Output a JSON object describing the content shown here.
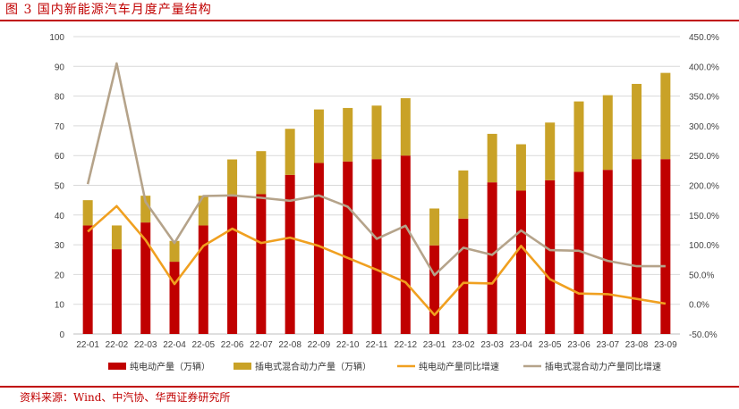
{
  "header": {
    "title": "图 3 国内新能源汽车月度产量结构"
  },
  "footer": {
    "source": "资料来源：Wind、中汽协、华西证券研究所"
  },
  "colors": {
    "bev": "#c00000",
    "phev": "#c9a227",
    "bev_yoy": "#f0a020",
    "phev_yoy": "#b5a38a",
    "grid": "#d9d9d9",
    "brand": "#c00000"
  },
  "chart_data": {
    "type": "bar",
    "stacked": true,
    "categories": [
      "22-01",
      "22-02",
      "22-03",
      "22-04",
      "22-05",
      "22-06",
      "22-07",
      "22-08",
      "22-09",
      "22-10",
      "22-11",
      "22-12",
      "23-01",
      "23-02",
      "23-03",
      "23-04",
      "23-05",
      "23-06",
      "23-07",
      "23-08",
      "23-09"
    ],
    "series": [
      {
        "name": "纯电动产量（万辆）",
        "type": "bar",
        "axis": "left",
        "values": [
          36.5,
          28.5,
          37.5,
          24.3,
          36.5,
          46.5,
          47.0,
          53.5,
          57.5,
          58.0,
          58.8,
          60.0,
          29.8,
          38.8,
          51.0,
          48.2,
          51.7,
          54.5,
          55.2,
          58.8,
          58.8
        ]
      },
      {
        "name": "插电式混合动力产量（万辆）",
        "type": "bar",
        "axis": "left",
        "values": [
          8.5,
          8.0,
          9.0,
          7.0,
          10.0,
          12.2,
          14.5,
          15.5,
          18.0,
          18.0,
          18.0,
          19.3,
          12.4,
          16.2,
          16.3,
          15.6,
          19.4,
          23.7,
          25.1,
          25.3,
          29.0
        ]
      },
      {
        "name": "纯电动产量同比增速",
        "type": "line",
        "axis": "right",
        "values": [
          1.22,
          1.65,
          1.08,
          0.34,
          0.98,
          1.27,
          1.03,
          1.12,
          0.98,
          0.78,
          0.58,
          0.37,
          -0.18,
          0.36,
          0.35,
          0.98,
          0.42,
          0.18,
          0.17,
          0.09,
          0.01
        ]
      },
      {
        "name": "插电式混合动力产量同比增速",
        "type": "line",
        "axis": "right",
        "values": [
          2.02,
          4.05,
          1.72,
          1.03,
          1.82,
          1.83,
          1.79,
          1.74,
          1.83,
          1.64,
          1.1,
          1.32,
          0.49,
          0.95,
          0.83,
          1.24,
          0.91,
          0.9,
          0.73,
          0.64,
          0.64
        ]
      }
    ],
    "yleft": {
      "lim": [
        0,
        100
      ],
      "ticks": [
        "0",
        "10",
        "20",
        "30",
        "40",
        "50",
        "60",
        "70",
        "80",
        "90",
        "100"
      ]
    },
    "yright": {
      "lim": [
        -0.5,
        4.5
      ],
      "ticks": [
        "-50.0%",
        "0.0%",
        "50.0%",
        "100.0%",
        "150.0%",
        "200.0%",
        "250.0%",
        "300.0%",
        "350.0%",
        "400.0%",
        "450.0%"
      ]
    },
    "grid": true,
    "legend_position": "bottom"
  }
}
